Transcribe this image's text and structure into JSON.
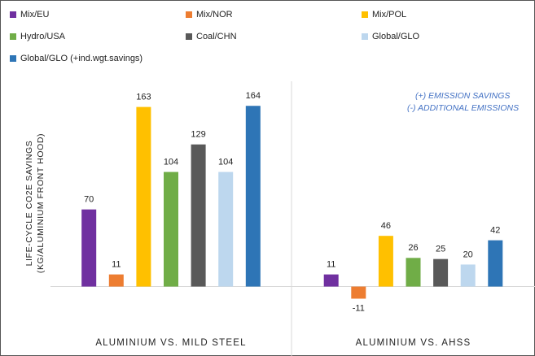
{
  "chart_data": {
    "type": "bar",
    "categories": [
      "ALUMINIUM VS. MILD STEEL",
      "ALUMINIUM VS. AHSS"
    ],
    "series": [
      {
        "name": "Mix/EU",
        "color": "#7030a0",
        "values": [
          70,
          11
        ]
      },
      {
        "name": "Mix/NOR",
        "color": "#ed7d31",
        "values": [
          11,
          -11
        ]
      },
      {
        "name": "Mix/POL",
        "color": "#ffc000",
        "values": [
          163,
          46
        ]
      },
      {
        "name": "Hydro/USA",
        "color": "#70ad47",
        "values": [
          104,
          26
        ]
      },
      {
        "name": "Coal/CHN",
        "color": "#595959",
        "values": [
          129,
          25
        ]
      },
      {
        "name": "Global/GLO",
        "color": "#bdd7ee",
        "values": [
          104,
          20
        ]
      },
      {
        "name": "Global/GLO (+ind.wgt.savings)",
        "color": "#2e75b6",
        "values": [
          164,
          42
        ]
      }
    ],
    "ylabel": [
      "LIFE-CYCLE CO2E SAVINGS",
      "(KG/ALUMINIUM FRONT HOOD)"
    ],
    "annotations": [
      "(+) EMISSION SAVINGS",
      "(-) ADDITIONAL EMISSIONS"
    ],
    "ylim": [
      -35,
      190
    ]
  }
}
